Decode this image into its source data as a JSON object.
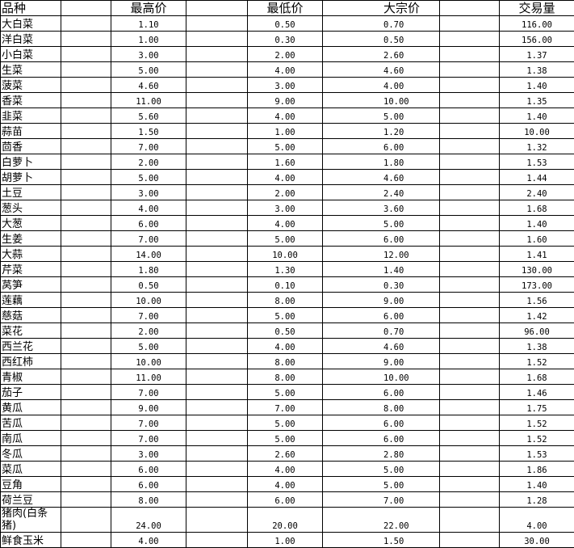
{
  "headers": {
    "name": "品种",
    "high": "最高价",
    "low": "最低价",
    "bulk": "大宗价",
    "volume": "交易量"
  },
  "rows": [
    {
      "name": "大白菜",
      "high": "1.10",
      "low": "0.50",
      "bulk": "0.70",
      "volume": "116.00"
    },
    {
      "name": "洋白菜",
      "high": "1.00",
      "low": "0.30",
      "bulk": "0.50",
      "volume": "156.00"
    },
    {
      "name": "小白菜",
      "high": "3.00",
      "low": "2.00",
      "bulk": "2.60",
      "volume": "1.37"
    },
    {
      "name": "生菜",
      "high": "5.00",
      "low": "4.00",
      "bulk": "4.60",
      "volume": "1.38"
    },
    {
      "name": "菠菜",
      "high": "4.60",
      "low": "3.00",
      "bulk": "4.00",
      "volume": "1.40"
    },
    {
      "name": "香菜",
      "high": "11.00",
      "low": "9.00",
      "bulk": "10.00",
      "volume": "1.35"
    },
    {
      "name": "韭菜",
      "high": "5.60",
      "low": "4.00",
      "bulk": "5.00",
      "volume": "1.40"
    },
    {
      "name": "蒜苗",
      "high": "1.50",
      "low": "1.00",
      "bulk": "1.20",
      "volume": "10.00"
    },
    {
      "name": "茴香",
      "high": "7.00",
      "low": "5.00",
      "bulk": "6.00",
      "volume": "1.32"
    },
    {
      "name": "白萝卜",
      "high": "2.00",
      "low": "1.60",
      "bulk": "1.80",
      "volume": "1.53"
    },
    {
      "name": "胡萝卜",
      "high": "5.00",
      "low": "4.00",
      "bulk": "4.60",
      "volume": "1.44"
    },
    {
      "name": "土豆",
      "high": "3.00",
      "low": "2.00",
      "bulk": "2.40",
      "volume": "2.40"
    },
    {
      "name": "葱头",
      "high": "4.00",
      "low": "3.00",
      "bulk": "3.60",
      "volume": "1.68"
    },
    {
      "name": "大葱",
      "high": "6.00",
      "low": "4.00",
      "bulk": "5.00",
      "volume": "1.40"
    },
    {
      "name": "生姜",
      "high": "7.00",
      "low": "5.00",
      "bulk": "6.00",
      "volume": "1.60"
    },
    {
      "name": "大蒜",
      "high": "14.00",
      "low": "10.00",
      "bulk": "12.00",
      "volume": "1.41"
    },
    {
      "name": "芹菜",
      "high": "1.80",
      "low": "1.30",
      "bulk": "1.40",
      "volume": "130.00"
    },
    {
      "name": "莴笋",
      "high": "0.50",
      "low": "0.10",
      "bulk": "0.30",
      "volume": "173.00"
    },
    {
      "name": "莲藕",
      "high": "10.00",
      "low": "8.00",
      "bulk": "9.00",
      "volume": "1.56"
    },
    {
      "name": "慈菇",
      "high": "7.00",
      "low": "5.00",
      "bulk": "6.00",
      "volume": "1.42"
    },
    {
      "name": "菜花",
      "high": "2.00",
      "low": "0.50",
      "bulk": "0.70",
      "volume": "96.00"
    },
    {
      "name": "西兰花",
      "high": "5.00",
      "low": "4.00",
      "bulk": "4.60",
      "volume": "1.38"
    },
    {
      "name": "西红柿",
      "high": "10.00",
      "low": "8.00",
      "bulk": "9.00",
      "volume": "1.52"
    },
    {
      "name": "青椒",
      "high": "11.00",
      "low": "8.00",
      "bulk": "10.00",
      "volume": "1.68"
    },
    {
      "name": "茄子",
      "high": "7.00",
      "low": "5.00",
      "bulk": "6.00",
      "volume": "1.46"
    },
    {
      "name": "黄瓜",
      "high": "9.00",
      "low": "7.00",
      "bulk": "8.00",
      "volume": "1.75"
    },
    {
      "name": "苦瓜",
      "high": "7.00",
      "low": "5.00",
      "bulk": "6.00",
      "volume": "1.52"
    },
    {
      "name": "南瓜",
      "high": "7.00",
      "low": "5.00",
      "bulk": "6.00",
      "volume": "1.52"
    },
    {
      "name": "冬瓜",
      "high": "3.00",
      "low": "2.60",
      "bulk": "2.80",
      "volume": "1.53"
    },
    {
      "name": "菜瓜",
      "high": "6.00",
      "low": "4.00",
      "bulk": "5.00",
      "volume": "1.86"
    },
    {
      "name": "豆角",
      "high": "6.00",
      "low": "4.00",
      "bulk": "5.00",
      "volume": "1.40"
    },
    {
      "name": "荷兰豆",
      "high": "8.00",
      "low": "6.00",
      "bulk": "7.00",
      "volume": "1.28"
    },
    {
      "name": "猪肉(白条猪)",
      "high": "24.00",
      "low": "20.00",
      "bulk": "22.00",
      "volume": "4.00"
    },
    {
      "name": "鲜食玉米",
      "high": "4.00",
      "low": "1.00",
      "bulk": "1.50",
      "volume": "30.00"
    }
  ]
}
